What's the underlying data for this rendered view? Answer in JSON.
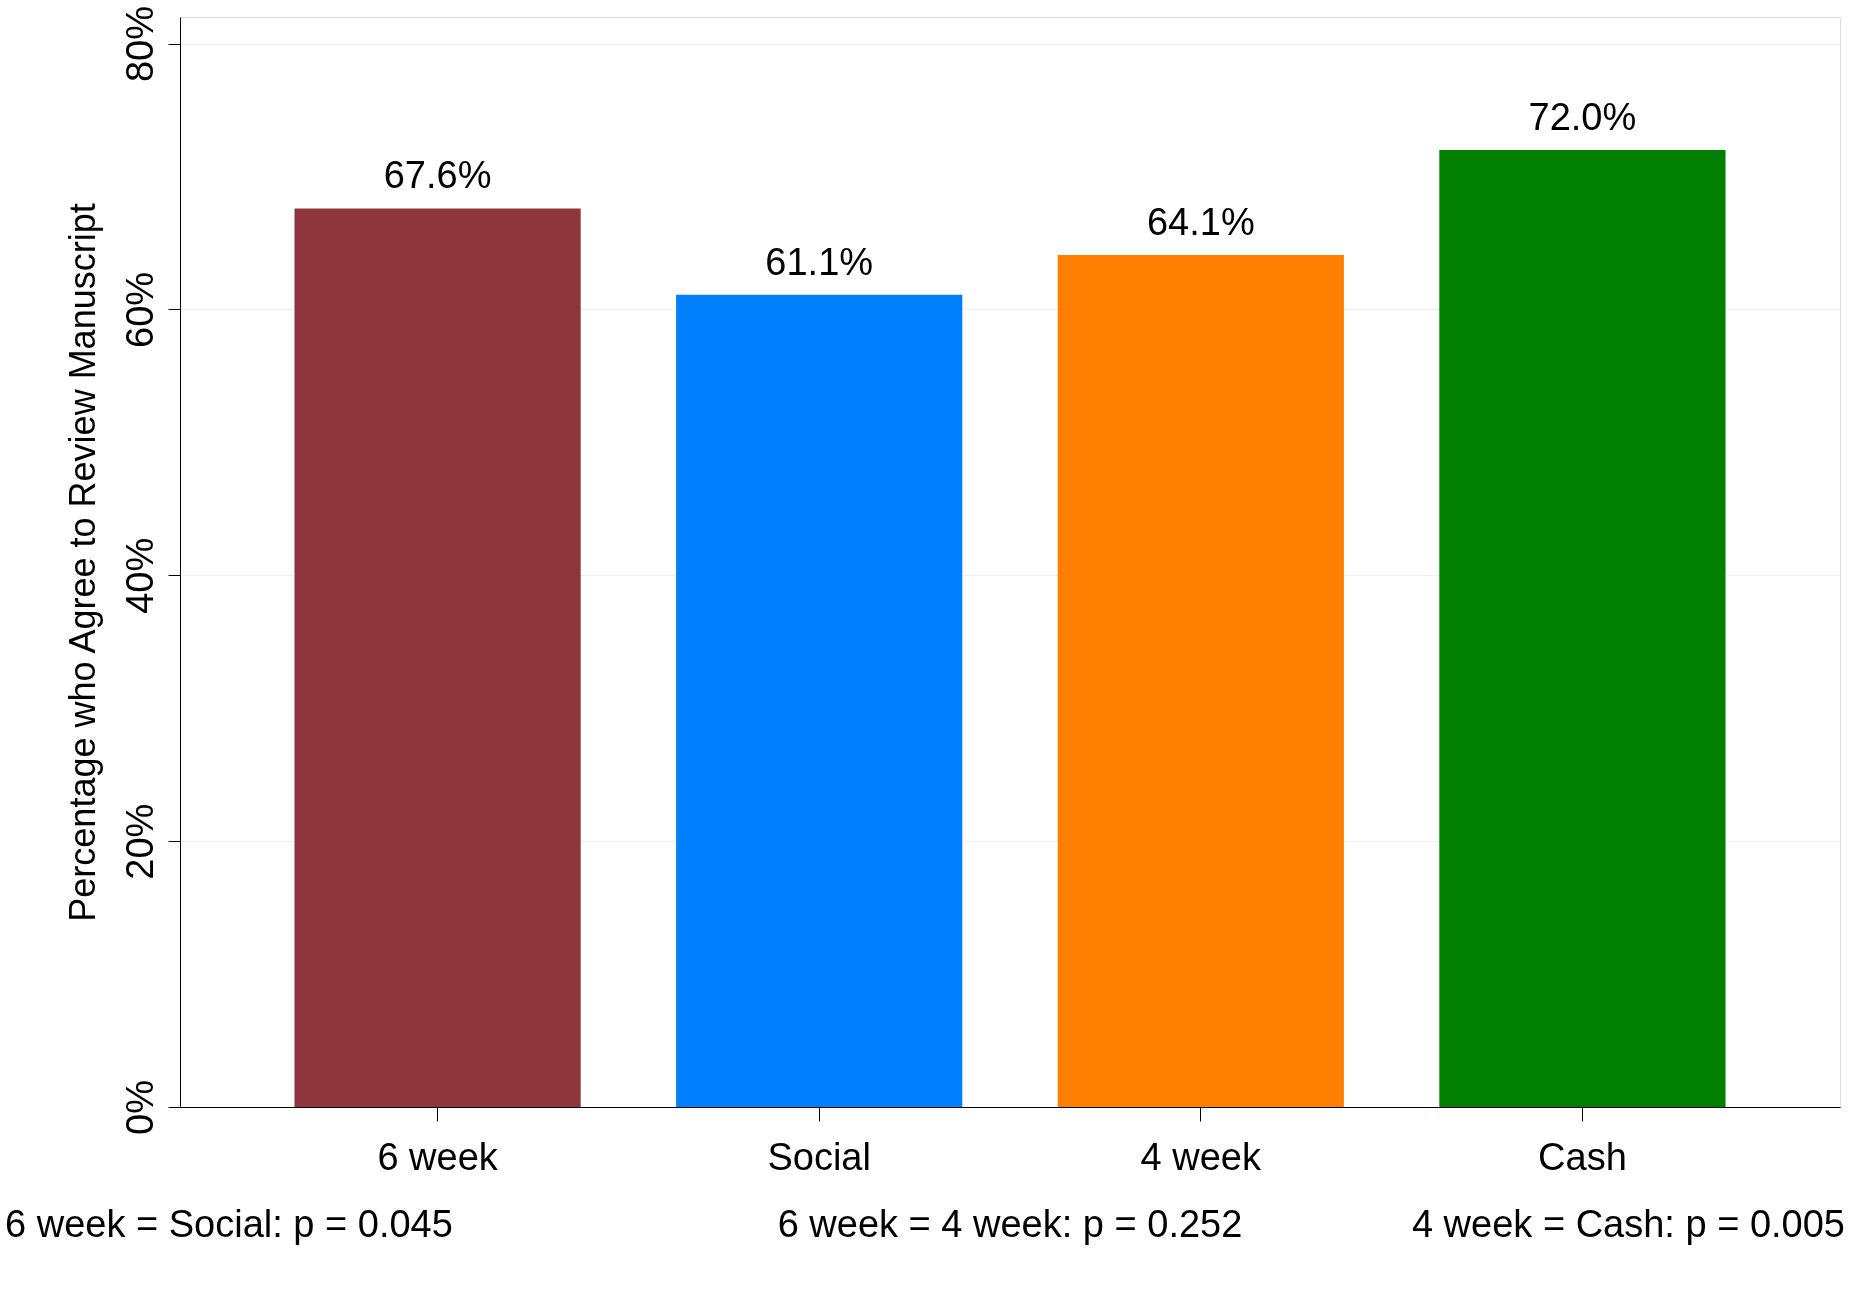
{
  "chart_data": {
    "type": "bar",
    "ylabel": "Percentage who Agree to Review Manuscript",
    "categories": [
      "6 week",
      "Social",
      "4 week",
      "Cash"
    ],
    "values": [
      67.6,
      61.1,
      64.1,
      72.0
    ],
    "colors": [
      "#8f353c",
      "#0080ff",
      "#ff7f00",
      "#007f00"
    ],
    "value_labels": [
      "67.6%",
      "61.1%",
      "64.1%",
      "72.0%"
    ],
    "ylim": [
      0,
      82
    ],
    "yticks": [
      {
        "value": 0,
        "label": "0%"
      },
      {
        "value": 20,
        "label": "20%"
      },
      {
        "value": 40,
        "label": "40%"
      },
      {
        "value": 60,
        "label": "60%"
      },
      {
        "value": 80,
        "label": "80%"
      }
    ],
    "grid": "y",
    "legend": false,
    "annotations": [
      "6 week = Social: p = 0.045",
      "6 week = 4 week: p = 0.252",
      "4 week = Cash: p = 0.005"
    ]
  }
}
